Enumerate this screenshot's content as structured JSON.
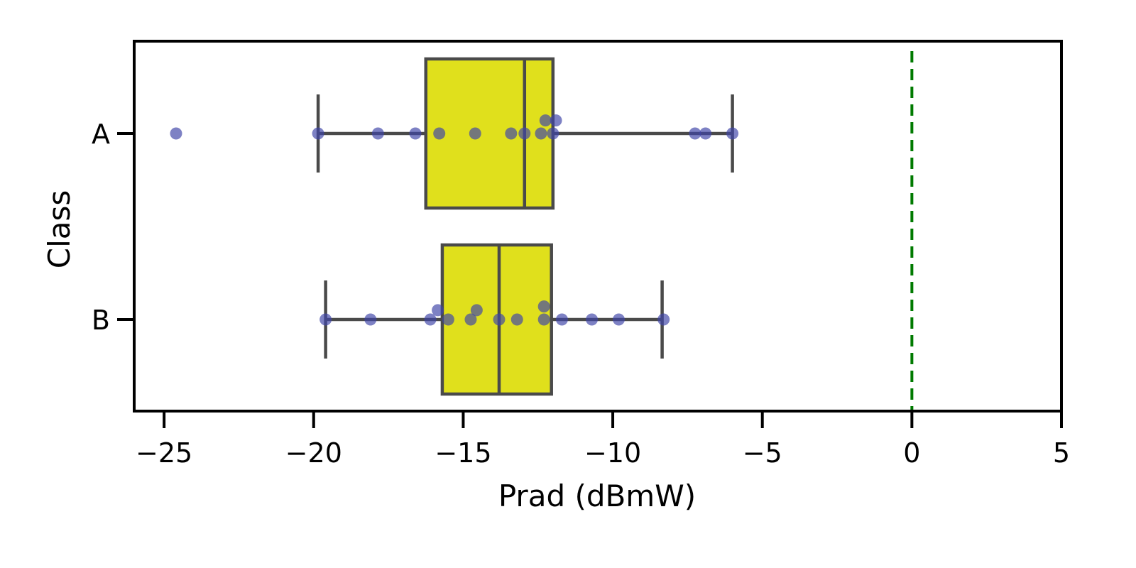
{
  "chart_data": {
    "type": "box",
    "orientation": "horizontal",
    "xlabel": "Prad (dBmW)",
    "ylabel": "Class",
    "xlim": [
      -26,
      5
    ],
    "xticks": [
      -25,
      -20,
      -15,
      -10,
      -5,
      0,
      5
    ],
    "xtick_labels": [
      "−25",
      "−20",
      "−15",
      "−10",
      "−5",
      "0",
      "5"
    ],
    "categories": [
      "A",
      "B"
    ],
    "boxes": [
      {
        "category": "A",
        "whisker_low": -19.85,
        "q1": -16.25,
        "median": -12.95,
        "q3": -12.0,
        "whisker_high": -6.0
      },
      {
        "category": "B",
        "whisker_low": -19.6,
        "q1": -15.7,
        "median": -13.8,
        "q3": -12.05,
        "whisker_high": -8.35
      }
    ],
    "points": {
      "A": [
        {
          "x": -24.6,
          "offset": 0
        },
        {
          "x": -19.85,
          "offset": 0
        },
        {
          "x": -17.85,
          "offset": 0
        },
        {
          "x": -16.6,
          "offset": 0
        },
        {
          "x": -15.8,
          "offset": 0
        },
        {
          "x": -14.6,
          "offset": 0
        },
        {
          "x": -13.4,
          "offset": 0
        },
        {
          "x": -12.95,
          "offset": 0
        },
        {
          "x": -12.4,
          "offset": 0
        },
        {
          "x": -12.25,
          "offset": 0.07
        },
        {
          "x": -12.0,
          "offset": 0
        },
        {
          "x": -11.9,
          "offset": 0.07
        },
        {
          "x": -7.25,
          "offset": 0
        },
        {
          "x": -6.9,
          "offset": 0
        },
        {
          "x": -6.0,
          "offset": 0
        }
      ],
      "B": [
        {
          "x": -19.6,
          "offset": 0
        },
        {
          "x": -18.1,
          "offset": 0
        },
        {
          "x": -16.1,
          "offset": 0
        },
        {
          "x": -15.85,
          "offset": 0.05
        },
        {
          "x": -15.5,
          "offset": 0
        },
        {
          "x": -14.75,
          "offset": 0
        },
        {
          "x": -14.55,
          "offset": 0.05
        },
        {
          "x": -13.8,
          "offset": 0
        },
        {
          "x": -13.2,
          "offset": 0
        },
        {
          "x": -12.3,
          "offset": 0
        },
        {
          "x": -12.3,
          "offset": 0.07
        },
        {
          "x": -11.7,
          "offset": 0
        },
        {
          "x": -10.7,
          "offset": 0
        },
        {
          "x": -9.8,
          "offset": 0
        },
        {
          "x": -8.3,
          "offset": 0
        }
      ]
    },
    "reference_line": {
      "x": 0,
      "style": "dashed",
      "color": "#007a00"
    },
    "box_color": "#e0e01c",
    "box_edge_color": "#4a4a4a",
    "point_color": "#3f45a8",
    "grid": false,
    "legend": "none"
  }
}
